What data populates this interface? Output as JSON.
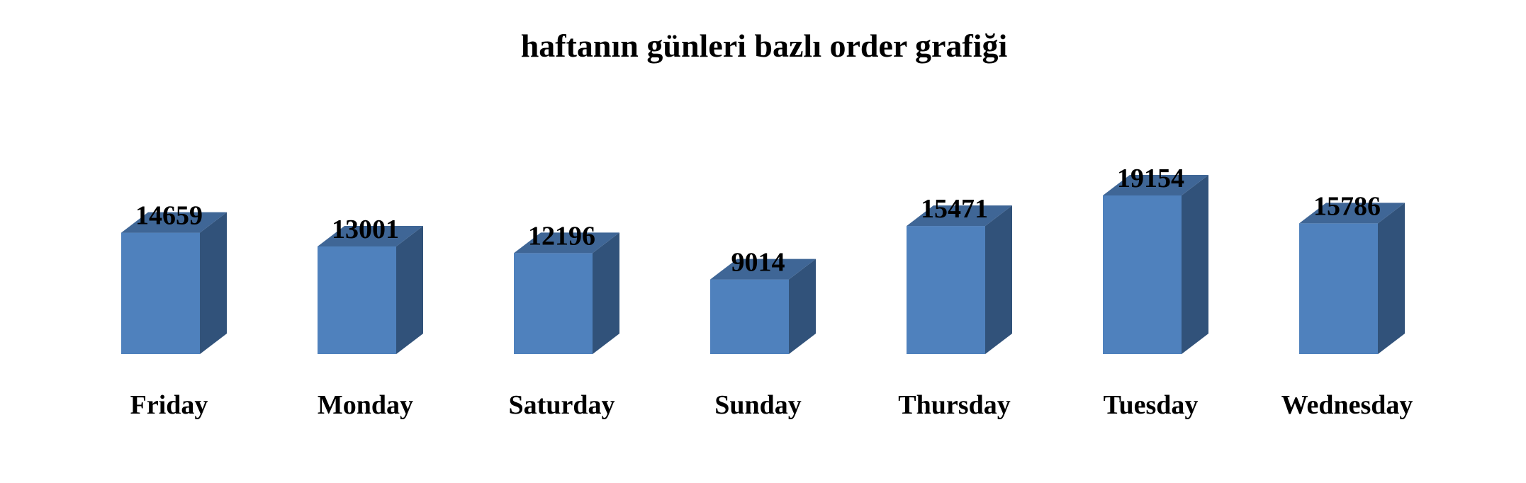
{
  "chart_data": {
    "type": "bar",
    "style": "3d-column",
    "title": "haftanın günleri bazlı order grafiği",
    "xlabel": "",
    "ylabel": "",
    "categories": [
      "Friday",
      "Monday",
      "Saturday",
      "Sunday",
      "Thursday",
      "Tuesday",
      "Wednesday"
    ],
    "values": [
      14659,
      13001,
      12196,
      9014,
      15471,
      19154,
      15786
    ],
    "data_labels": [
      "14659",
      "13001",
      "12196",
      "9014",
      "15471",
      "19154",
      "15786"
    ],
    "ylim": [
      0,
      19154
    ],
    "grid": false,
    "legend": "none",
    "colors": {
      "front": "#4F81BD",
      "side": "#31527A",
      "top": "#3F6696"
    }
  }
}
